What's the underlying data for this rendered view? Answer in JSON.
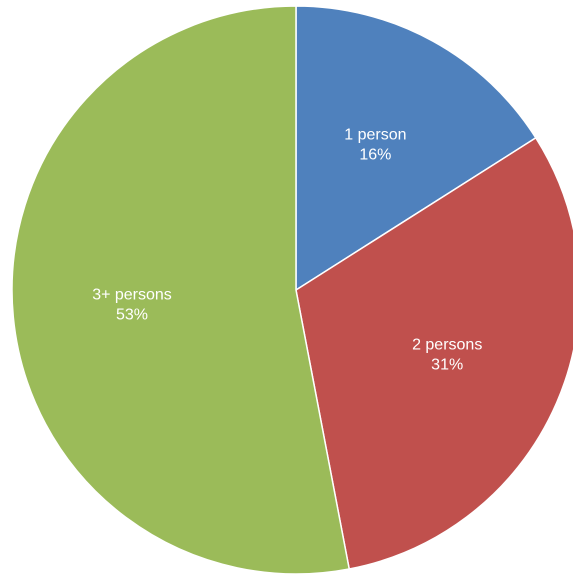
{
  "chart_data": {
    "type": "pie",
    "title": "",
    "slices": [
      {
        "label": "1 person",
        "percent_label": "16%",
        "value": 16,
        "color": "#4F81BD"
      },
      {
        "label": "2 persons",
        "percent_label": "31%",
        "value": 31,
        "color": "#C0504D"
      },
      {
        "label": "3+ persons",
        "percent_label": "53%",
        "value": 53,
        "color": "#9BBB59"
      }
    ],
    "start_angle_deg": 0,
    "direction": "clockwise",
    "legend": "none",
    "data_labels": "inside"
  }
}
